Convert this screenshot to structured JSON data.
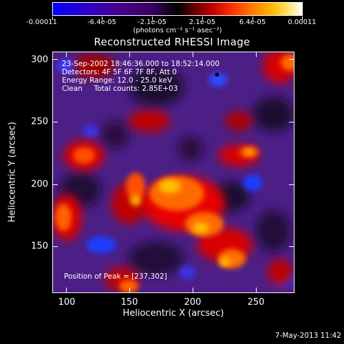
{
  "colorbar": {
    "tick_labels": [
      "-0.00011",
      "-6.4e-05",
      "-2.1e-05",
      "2.1e-05",
      "6.4e-05",
      "0.00011"
    ],
    "unit_label": "(photons cm⁻² s⁻¹ asec⁻²)",
    "min_value": -0.00011,
    "max_value": 0.00011
  },
  "title": "Reconstructed RHESSI Image",
  "info": {
    "time_range": "23-Sep-2002 18:46:36.000 to 18:52:14.000",
    "detectors": "Detectors: 4F 5F 6F 7F 8F, Att 0",
    "energy_range": "Energy Range: 12.0 - 25.0 keV",
    "method_counts": "Clean     Total counts: 2.85E+03",
    "peak_position": "Position of Peak = [237,302]"
  },
  "axes": {
    "xlabel": "Heliocentric X (arcsec)",
    "ylabel": "Heliocentric Y (arcsec)",
    "xticks": [
      "100",
      "150",
      "200",
      "250"
    ],
    "yticks": [
      "300",
      "250",
      "200",
      "150"
    ],
    "xlim": [
      90,
      280
    ],
    "ylim": [
      110,
      306
    ]
  },
  "footer": {
    "date": "7-May-2013 11:42"
  }
}
